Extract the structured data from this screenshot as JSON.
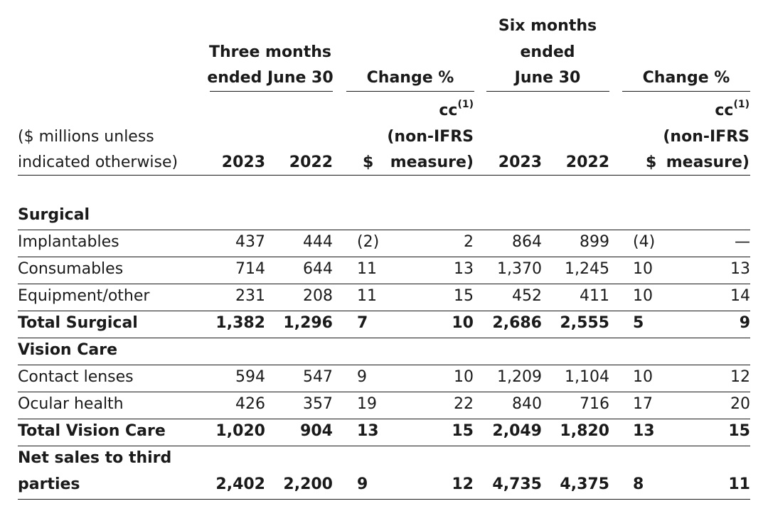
{
  "header": {
    "three_months": [
      "Three months",
      "ended June 30"
    ],
    "six_months": [
      "Six months",
      "ended",
      "June 30"
    ],
    "change_pct_1": "Change %",
    "change_pct_2": "Change %",
    "cc_1": "cc",
    "cc_sup_1": "(1)",
    "cc_2": "cc",
    "cc_sup_2": "(1)",
    "non_ifrs_1": "(non-IFRS",
    "non_ifrs_2": "(non-IFRS",
    "measure_1": "measure)",
    "measure_2": "measure)",
    "label": [
      "($ millions unless",
      "indicated otherwise)"
    ],
    "y2023_a": "2023",
    "y2022_a": "2022",
    "usd_a": "$",
    "y2023_b": "2023",
    "y2022_b": "2022",
    "usd_b": "$"
  },
  "rows": [
    {
      "label": "Surgical",
      "bold": true,
      "section": true,
      "values": [
        "",
        "",
        "",
        "",
        "",
        "",
        "",
        ""
      ]
    },
    {
      "label": "Implantables",
      "bold": false,
      "values": [
        "437",
        "444",
        "(2)",
        "2",
        "864",
        "899",
        "(4)",
        "—"
      ]
    },
    {
      "label": "Consumables",
      "bold": false,
      "values": [
        "714",
        "644",
        "11",
        "13",
        "1,370",
        "1,245",
        "10",
        "13"
      ]
    },
    {
      "label": "Equipment/other",
      "bold": false,
      "values": [
        "231",
        "208",
        "11",
        "15",
        "452",
        "411",
        "10",
        "14"
      ]
    },
    {
      "label": "Total Surgical",
      "bold": true,
      "values": [
        "1,382",
        "1,296",
        "7",
        "10",
        "2,686",
        "2,555",
        "5",
        "9"
      ]
    },
    {
      "label": "Vision Care",
      "bold": true,
      "section": true,
      "values": [
        "",
        "",
        "",
        "",
        "",
        "",
        "",
        ""
      ]
    },
    {
      "label": "Contact lenses",
      "bold": false,
      "values": [
        "594",
        "547",
        "9",
        "10",
        "1,209",
        "1,104",
        "10",
        "12"
      ]
    },
    {
      "label": "Ocular health",
      "bold": false,
      "values": [
        "426",
        "357",
        "19",
        "22",
        "840",
        "716",
        "17",
        "20"
      ]
    },
    {
      "label": "Total Vision Care",
      "bold": true,
      "values": [
        "1,020",
        "904",
        "13",
        "15",
        "2,049",
        "1,820",
        "13",
        "15"
      ]
    }
  ],
  "net_sales": {
    "label": [
      "Net sales to third",
      "parties"
    ],
    "values": [
      "2,402",
      "2,200",
      "9",
      "12",
      "4,735",
      "4,375",
      "8",
      "11"
    ]
  }
}
